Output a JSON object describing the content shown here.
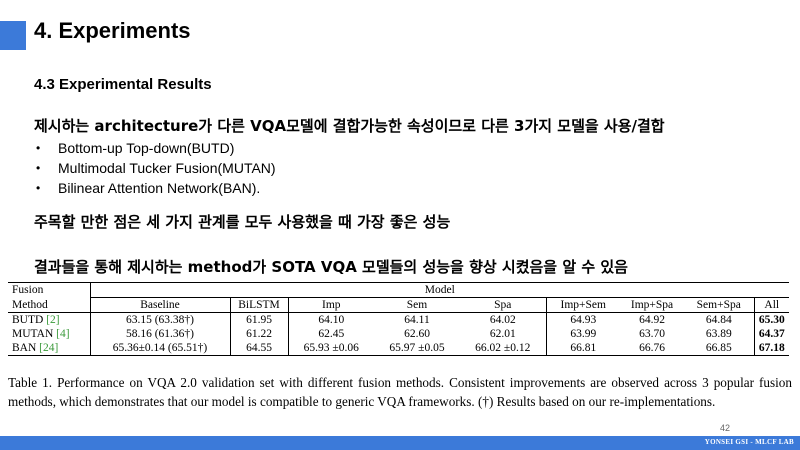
{
  "slide": {
    "title": "4. Experiments",
    "subtitle": "4.3 Experimental  Results",
    "para1": "제시하는 architecture가 다른 VQA모델에 결합가능한 속성이므로 다른 3가지 모델을 사용/결합",
    "bullets": [
      "Bottom-up Top-down(BUTD)",
      "Multimodal  Tucker Fusion(MUTAN)",
      "Bilinear Attention  Network(BAN)."
    ],
    "bullet_glyph": "•",
    "para2": "주목할 만한 점은 세 가지 관계를 모두 사용했을 때 가장 좋은 성능",
    "para3": "결과들을 통해 제시하는 method가 SOTA VQA 모델들의 성능을 향상 시켰음을 알 수 있음",
    "page_number": "42",
    "footer": "YONSEI GSI - MLCF LAB"
  },
  "table": {
    "h1_fusion": "Fusion",
    "h1_model": "Model",
    "h2_method": "Method",
    "columns": [
      "Baseline",
      "BiLSTM",
      "Imp",
      "Sem",
      "Spa",
      "Imp+Sem",
      "Imp+Spa",
      "Sem+Spa",
      "All"
    ],
    "rows": [
      {
        "method": "BUTD",
        "ref": "[2]",
        "values": [
          "63.15 (63.38†)",
          "61.95",
          "64.10",
          "64.11",
          "64.02",
          "64.93",
          "64.92",
          "64.84",
          "65.30"
        ]
      },
      {
        "method": "MUTAN",
        "ref": "[4]",
        "values": [
          "58.16 (61.36†)",
          "61.22",
          "62.45",
          "62.60",
          "62.01",
          "63.99",
          "63.70",
          "63.89",
          "64.37"
        ]
      },
      {
        "method": "BAN",
        "ref": "[24]",
        "values": [
          "65.36±0.14 (65.51†)",
          "64.55",
          "65.93 ±0.06",
          "65.97 ±0.05",
          "66.02 ±0.12",
          "66.81",
          "66.76",
          "66.85",
          "67.18"
        ]
      }
    ],
    "caption": "Table 1. Performance on VQA 2.0 validation set with different fusion methods. Consistent improvements are observed across 3 popular fusion methods, which demonstrates that our model is compatible to generic VQA frameworks. (†) Results based on our re-implementations."
  },
  "colors": {
    "accent": "#3c7ad9",
    "ref_green": "#3b9a3b"
  }
}
